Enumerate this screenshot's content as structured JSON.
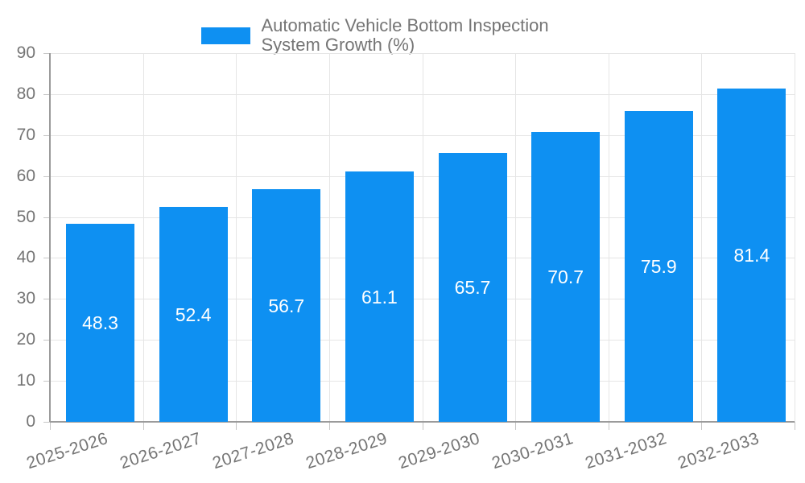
{
  "legend": {
    "label": "Automatic Vehicle Bottom Inspection System Growth (%)"
  },
  "colors": {
    "bar": "#0E90F2",
    "axis_line": "#9B9B9B",
    "tick": "#C6C6C6",
    "gridline": "#E5E5E5",
    "axis_label": "#757575",
    "legend_text": "#757575",
    "value_label": "#FFFFFF",
    "background": "#FFFFFF"
  },
  "chart_data": {
    "type": "bar",
    "title": "Automatic Vehicle Bottom Inspection System Growth (%)",
    "legend_entries": [
      "Automatic Vehicle Bottom Inspection System Growth (%)"
    ],
    "legend_position": "top",
    "categories": [
      "2025-2026",
      "2026-2027",
      "2027-2028",
      "2028-2029",
      "2029-2030",
      "2030-2031",
      "2031-2032",
      "2032-2033"
    ],
    "values": [
      48.3,
      52.4,
      56.7,
      61.1,
      65.7,
      70.7,
      75.9,
      81.4
    ],
    "value_labels": [
      "48.3",
      "52.4",
      "56.7",
      "61.1",
      "65.7",
      "70.7",
      "75.9",
      "81.4"
    ],
    "value_label_position": "inside-center",
    "xlabel": "",
    "ylabel": "",
    "ylim": [
      0,
      90
    ],
    "yticks": [
      0,
      10,
      20,
      30,
      40,
      50,
      60,
      70,
      80,
      90
    ],
    "grid": true,
    "x_label_rotation_deg": -18
  }
}
